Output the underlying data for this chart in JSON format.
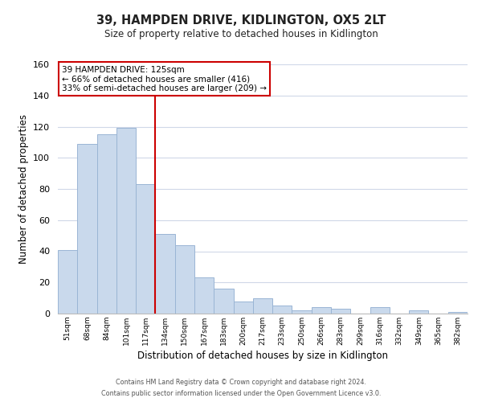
{
  "title": "39, HAMPDEN DRIVE, KIDLINGTON, OX5 2LT",
  "subtitle": "Size of property relative to detached houses in Kidlington",
  "xlabel": "Distribution of detached houses by size in Kidlington",
  "ylabel": "Number of detached properties",
  "categories": [
    "51sqm",
    "68sqm",
    "84sqm",
    "101sqm",
    "117sqm",
    "134sqm",
    "150sqm",
    "167sqm",
    "183sqm",
    "200sqm",
    "217sqm",
    "233sqm",
    "250sqm",
    "266sqm",
    "283sqm",
    "299sqm",
    "316sqm",
    "332sqm",
    "349sqm",
    "365sqm",
    "382sqm"
  ],
  "values": [
    41,
    109,
    115,
    119,
    83,
    51,
    44,
    23,
    16,
    8,
    10,
    5,
    2,
    4,
    3,
    0,
    4,
    0,
    2,
    0,
    1
  ],
  "bar_color": "#c9d9ec",
  "bar_edge_color": "#9ab5d4",
  "vline_x": 4.5,
  "vline_color": "#cc0000",
  "annotation_title": "39 HAMPDEN DRIVE: 125sqm",
  "annotation_line1": "← 66% of detached houses are smaller (416)",
  "annotation_line2": "33% of semi-detached houses are larger (209) →",
  "annotation_box_color": "#ffffff",
  "annotation_box_edge": "#cc0000",
  "ylim": [
    0,
    160
  ],
  "yticks": [
    0,
    20,
    40,
    60,
    80,
    100,
    120,
    140,
    160
  ],
  "footer_line1": "Contains HM Land Registry data © Crown copyright and database right 2024.",
  "footer_line2": "Contains public sector information licensed under the Open Government Licence v3.0.",
  "background_color": "#ffffff",
  "grid_color": "#d0d8e8"
}
